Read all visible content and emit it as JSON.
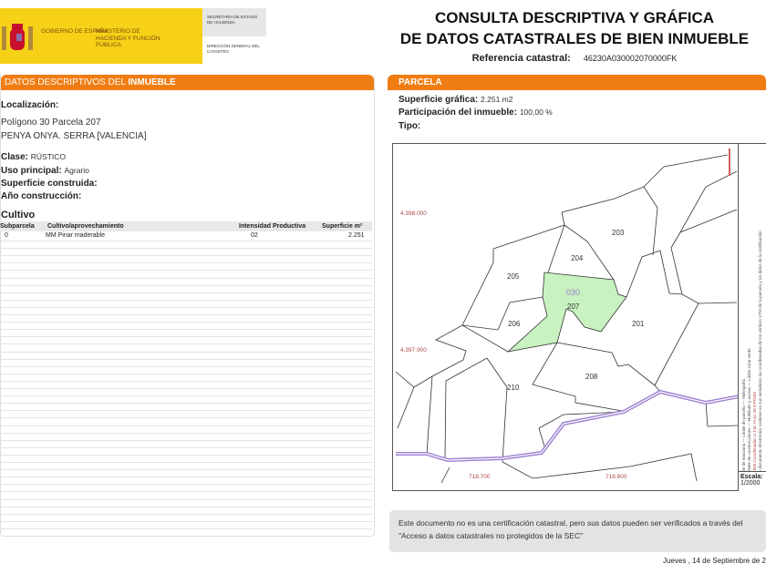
{
  "header": {
    "logo": {
      "gov": "GOBIERNO DE ESPAÑA",
      "ministry": "MINISTERIO DE HACIENDA Y FUNCIÓN PÚBLICA",
      "brand_color": "#f7d117"
    },
    "secretaria": "SECRETARÍA DE ESTADO DE HACIENDA",
    "direccion": "DIRECCIÓN GENERAL DEL CATASTRO",
    "title_line1": "CONSULTA DESCRIPTIVA Y GRÁFICA",
    "title_line2": "DE DATOS CATASTRALES DE BIEN INMUEBLE",
    "ref_label": "Referencia catastral:",
    "ref_value": "46230A030002070000FK"
  },
  "accent_color": "#f07d13",
  "descriptivos": {
    "heading_a": "DATOS DESCRIPTIVOS DEL ",
    "heading_b": "INMUEBLE",
    "localizacion_label": "Localización:",
    "localizacion_line1": "Polígono 30 Parcela 207",
    "localizacion_line2": "PENYA ONYA. SERRA [VALENCIA]",
    "clase_label": "Clase:",
    "clase_value": "RÚSTICO",
    "uso_label": "Uso principal:",
    "uso_value": "Agrario",
    "superficie_label": "Superficie construida:",
    "anio_label": "Año construcción:",
    "cultivo_label": "Cultivo",
    "columns": [
      "Subparcela",
      "Cultivo/aprovechamiento",
      "Intensidad Productiva",
      "Superficie m²"
    ],
    "rows": [
      {
        "subparcela": "0",
        "cultivo": "MM Pinar maderable",
        "intensidad": "02",
        "superficie": "2.251"
      }
    ]
  },
  "parcela": {
    "heading": "PARCELA",
    "superficie_label": "Superficie gráfica:",
    "superficie_value": "2.251 m2",
    "participacion_label": "Participación del inmueble:",
    "participacion_value": "100,00 %",
    "tipo_label": "Tipo:"
  },
  "map": {
    "parcel_labels": [
      "203",
      "204",
      "205",
      "206",
      "207",
      "201",
      "208",
      "210"
    ],
    "polygon_label": "030",
    "y_coords": [
      "4.398.000",
      "4.397.900"
    ],
    "x_coords": [
      "718.700",
      "718.800"
    ],
    "highlight_color": "#c8f2c0",
    "road_color": "#9a7fd0",
    "legend": [
      "Límite de manzana   —  Límite de parcela   —  Hidrografía",
      "—  Límite de construcciones   —  Mobiliario y aceras   —  Límite zona verde",
      "718.800 Coordenadas U.T.M. Huso 30 ETRS89",
      "Este documento electrónico contiene en sus metadatos las coordenadas de los vértices UTM de la parcela y los datos de la certificación"
    ],
    "scale_label": "Escala:",
    "scale_value": "1/2000"
  },
  "footer": {
    "note": "Este documento no es una certificación catastral, pero sus datos pueden ser verificados a través del \"Acceso a datos catastrales no protegidos de la SEC\"",
    "date": "Jueves , 14 de Septiembre de 2"
  }
}
